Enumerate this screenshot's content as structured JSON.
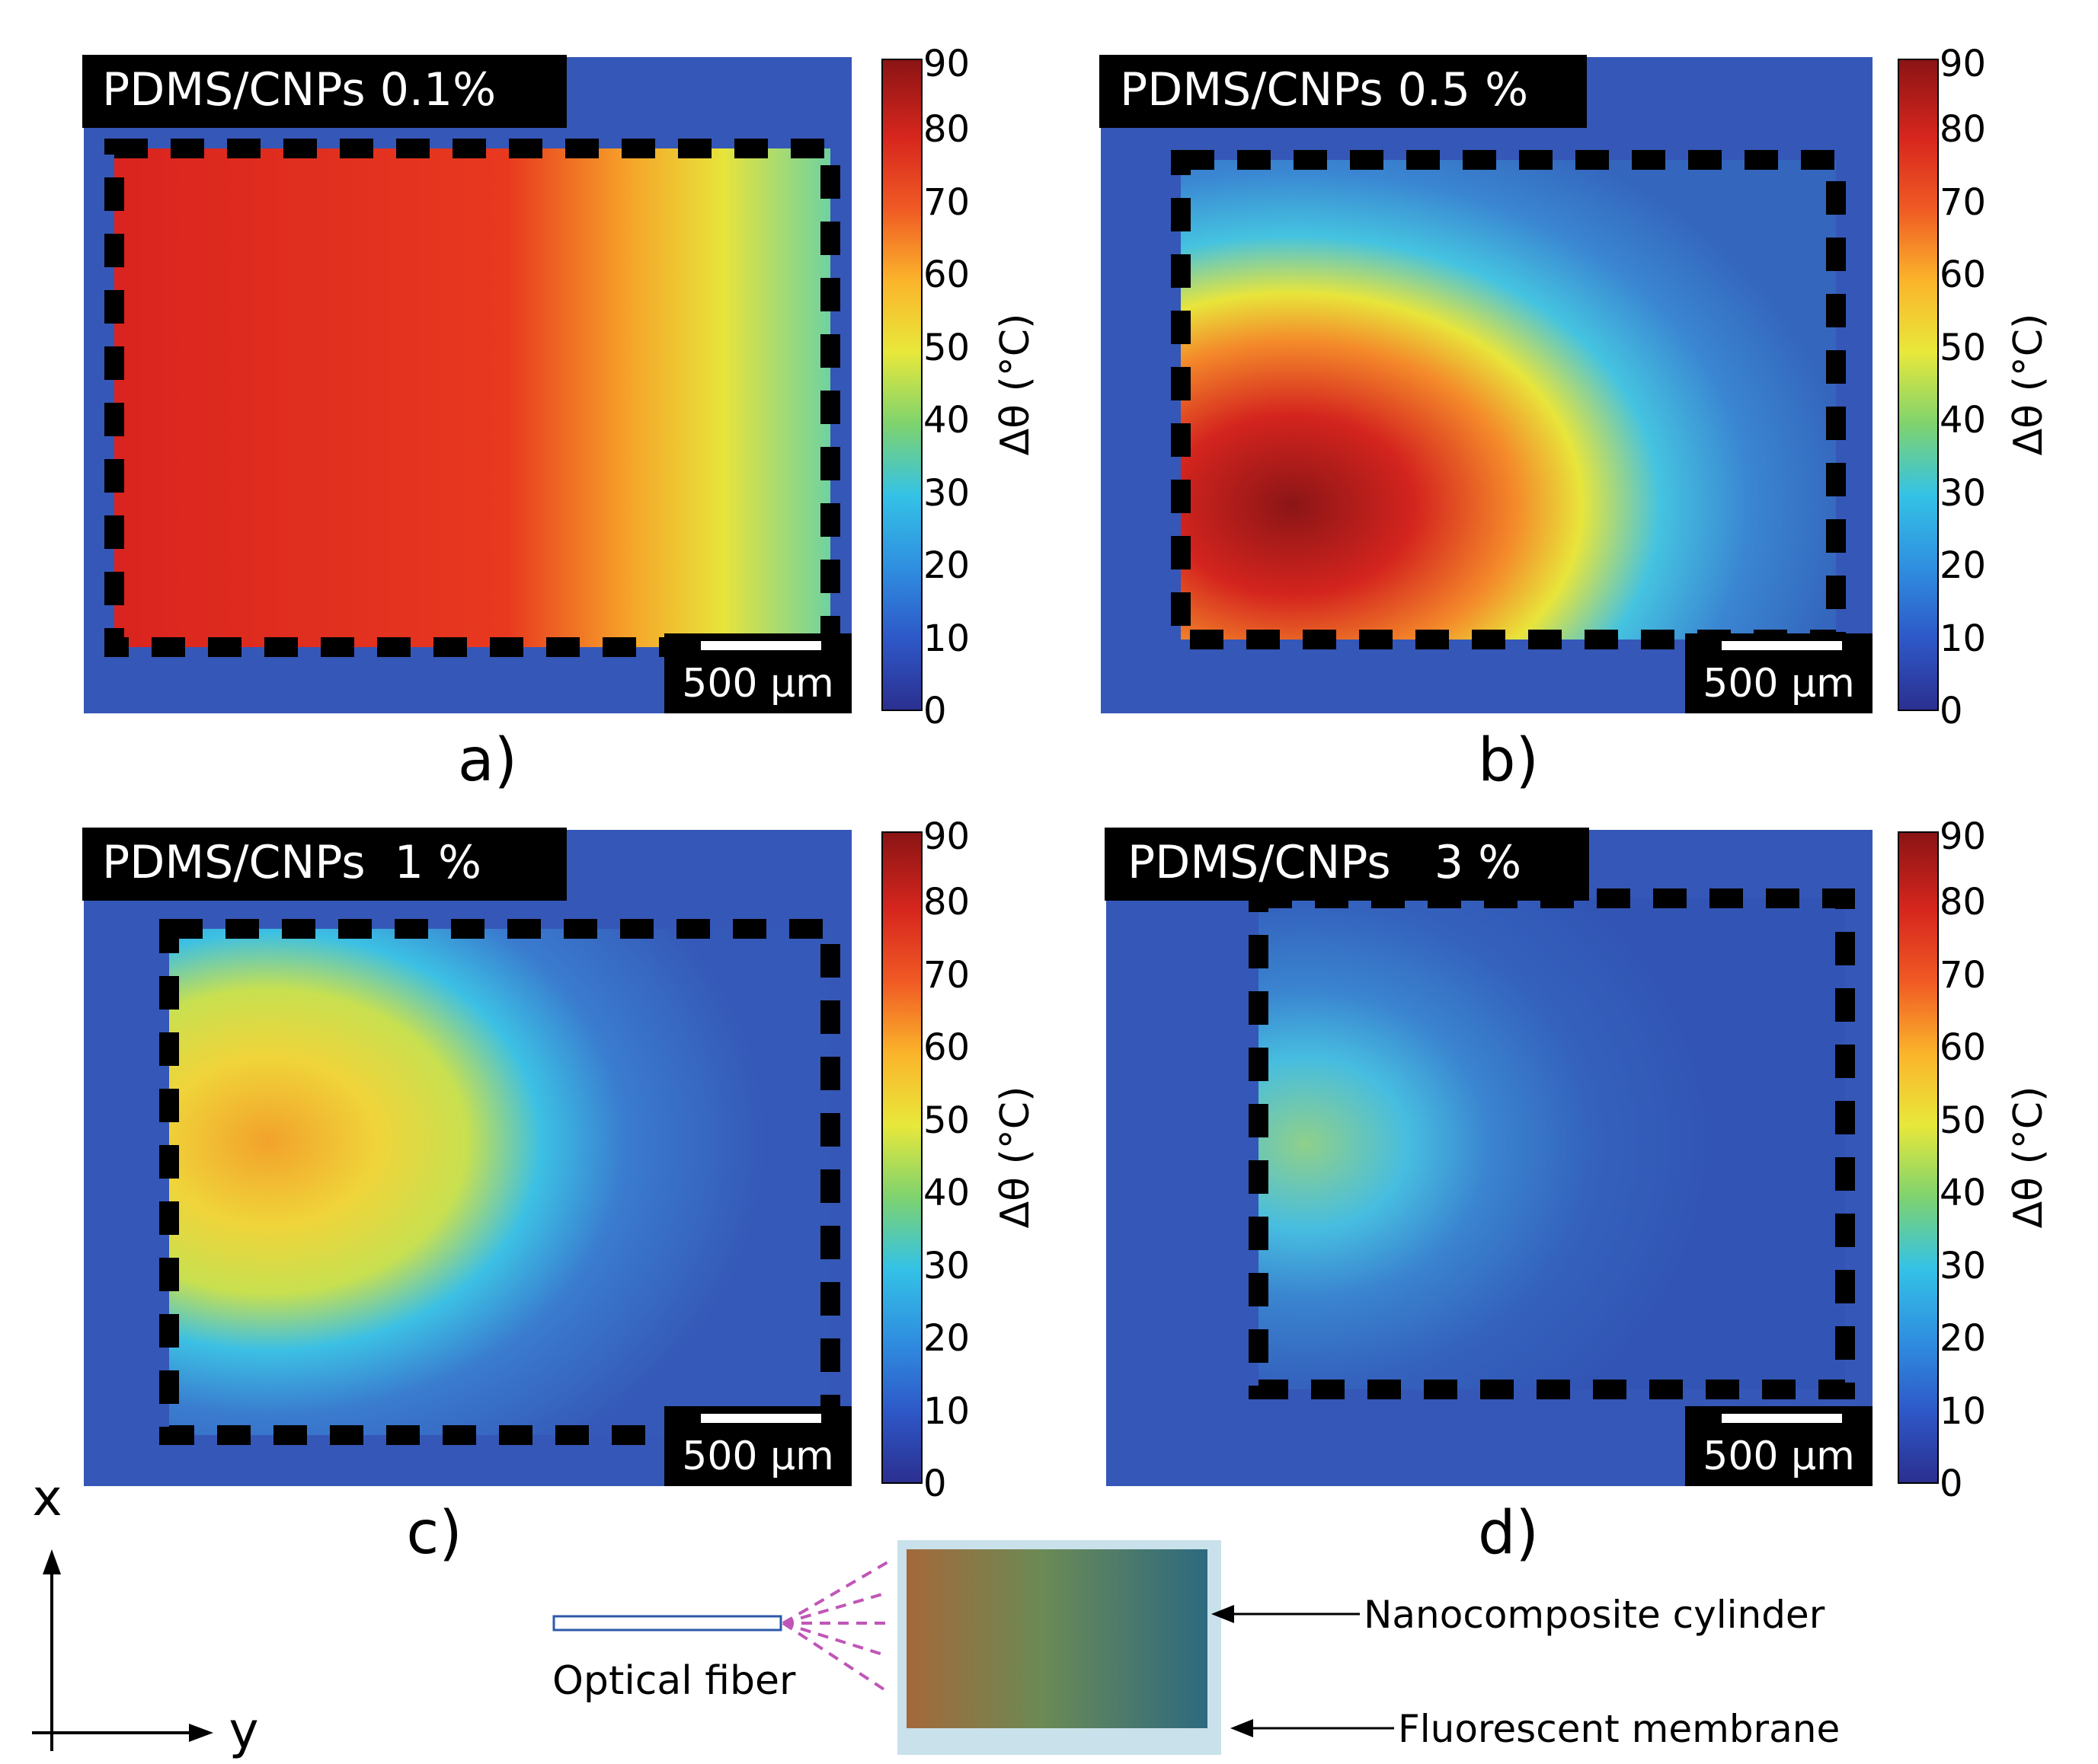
{
  "colorscale": {
    "stops": [
      "#2b2f8f",
      "#2e58c8",
      "#2f8fe0",
      "#34c2e6",
      "#7fd36e",
      "#e8e83a",
      "#fbb42b",
      "#f05a24",
      "#d7261e",
      "#8a1414"
    ],
    "ticks": [
      "0",
      "10",
      "20",
      "30",
      "40",
      "50",
      "60",
      "70",
      "80",
      "90"
    ],
    "label": "Δθ (°C)"
  },
  "scale_bar_label": "500 μm",
  "panels": [
    {
      "title": "PDMS/CNPs 0.1%",
      "letter": "a)"
    },
    {
      "title": "PDMS/CNPs 0.5 %",
      "letter": "b)"
    },
    {
      "title": "PDMS/CNPs  1 %",
      "letter": "c)"
    },
    {
      "title": "PDMS/CNPs   3 %",
      "letter": "d)"
    }
  ],
  "axes": {
    "x_label": "x",
    "y_label": "y"
  },
  "schematic": {
    "fiber_label": "Optical fiber",
    "cylinder_label": "Nanocomposite cylinder",
    "membrane_label": "Fluorescent membrane"
  }
}
